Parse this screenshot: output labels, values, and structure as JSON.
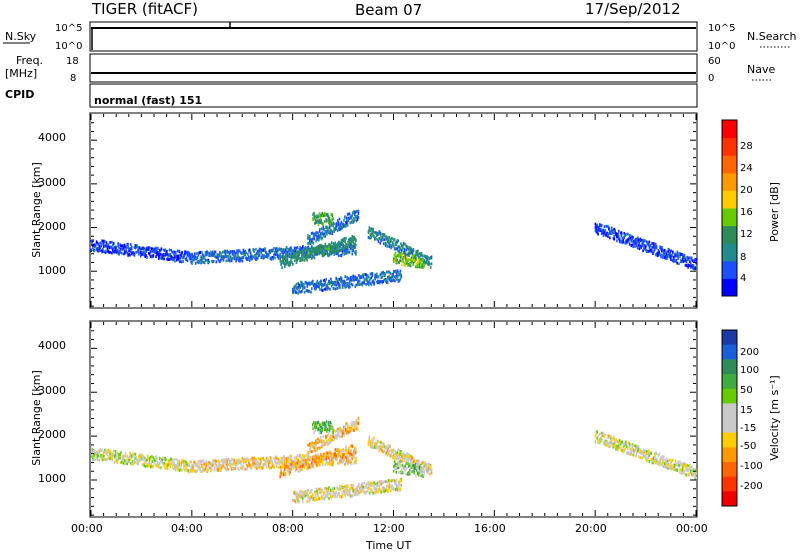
{
  "header": {
    "title": "TIGER (fitACF)",
    "beam": "Beam 07",
    "date": "17/Sep/2012"
  },
  "nsky_panel": {
    "left_label": "N.Sky",
    "right_label": "N.Search",
    "left_ticks": [
      "10^5",
      "10^0"
    ],
    "right_ticks": [
      "10^5",
      "10^0"
    ]
  },
  "freq_panel": {
    "left_label": "Freq.",
    "left_unit": "[MHz]",
    "right_label": "Nave",
    "left_ticks": [
      "18",
      "8"
    ],
    "right_ticks": [
      "60",
      "0"
    ]
  },
  "cpid_panel": {
    "label": "CPID",
    "value": "normal (fast) 151"
  },
  "power_panel": {
    "ylabel": "Slant Range [km]",
    "yticks": [
      "1000",
      "2000",
      "3000",
      "4000"
    ],
    "colorbar_label": "Power [dB]",
    "colorbar_ticks": [
      "4",
      "8",
      "12",
      "16",
      "20",
      "24",
      "28"
    ],
    "colors": [
      "#0000ff",
      "#1a50ff",
      "#228b8b",
      "#2e8b57",
      "#66cc00",
      "#ffcc00",
      "#ff9900",
      "#ff6600",
      "#ff3300",
      "#ff0000"
    ]
  },
  "velocity_panel": {
    "ylabel": "Slant Range [km]",
    "yticks": [
      "1000",
      "2000",
      "3000",
      "4000"
    ],
    "colorbar_label": "Velocity [m s⁻¹]",
    "colorbar_ticks": [
      "200",
      "100",
      "50",
      "15",
      "-15",
      "-50",
      "-100",
      "-200"
    ],
    "colors": [
      "#1a3aa8",
      "#1a5fd8",
      "#2e8b57",
      "#3faa3f",
      "#66cc00",
      "#c8c8c8",
      "#c8c8c8",
      "#ffcc00",
      "#ff9900",
      "#ff6600",
      "#ff3300",
      "#ee0000"
    ]
  },
  "xaxis": {
    "label": "Time UT",
    "ticks": [
      "00:00",
      "04:00",
      "08:00",
      "12:00",
      "16:00",
      "20:00",
      "00:00"
    ]
  },
  "chart_data": [
    {
      "type": "heatmap",
      "title": "Power",
      "xlabel": "Time UT",
      "ylabel": "Slant Range [km]",
      "xlim": [
        0,
        24
      ],
      "ylim": [
        180,
        4600
      ],
      "colorbar": {
        "label": "Power [dB]",
        "range": [
          0,
          32
        ],
        "ticks": [
          4,
          8,
          12,
          16,
          20,
          24,
          28
        ]
      },
      "bands": [
        {
          "t_start": 0.0,
          "t_end": 4.0,
          "range_start_km": 1600,
          "range_end_km": 1300,
          "power_db": 4
        },
        {
          "t_start": 4.0,
          "t_end": 10.5,
          "range_start_km": 1300,
          "range_end_km": 1500,
          "power_db": 6
        },
        {
          "t_start": 7.5,
          "t_end": 10.5,
          "range_start_km": 1200,
          "range_end_km": 1700,
          "power_db": 10
        },
        {
          "t_start": 8.6,
          "t_end": 10.6,
          "range_start_km": 1700,
          "range_end_km": 2300,
          "power_db": 6
        },
        {
          "t_start": 8.8,
          "t_end": 9.6,
          "range_start_km": 2200,
          "range_end_km": 2200,
          "power_db": 12
        },
        {
          "t_start": 11.0,
          "t_end": 13.5,
          "range_start_km": 1900,
          "range_end_km": 1200,
          "power_db": 8
        },
        {
          "t_start": 12.0,
          "t_end": 13.2,
          "range_start_km": 1300,
          "range_end_km": 1200,
          "power_db": 14
        },
        {
          "t_start": 8.0,
          "t_end": 12.3,
          "range_start_km": 600,
          "range_end_km": 900,
          "power_db": 6
        },
        {
          "t_start": 20.0,
          "t_end": 24.0,
          "range_start_km": 2000,
          "range_end_km": 1150,
          "power_db": 4
        }
      ]
    },
    {
      "type": "heatmap",
      "title": "Velocity",
      "xlabel": "Time UT",
      "ylabel": "Slant Range [km]",
      "xlim": [
        0,
        24
      ],
      "ylim": [
        180,
        4600
      ],
      "colorbar": {
        "label": "Velocity [m s⁻¹]",
        "range": [
          -250,
          250
        ],
        "ticks": [
          200,
          100,
          50,
          15,
          -15,
          -50,
          -100,
          -200
        ]
      },
      "bands": [
        {
          "t_start": 0.0,
          "t_end": 4.0,
          "range_start_km": 1600,
          "range_end_km": 1300,
          "velocity": 0
        },
        {
          "t_start": 4.0,
          "t_end": 10.5,
          "range_start_km": 1300,
          "range_end_km": 1500,
          "velocity": -40
        },
        {
          "t_start": 7.5,
          "t_end": 10.5,
          "range_start_km": 1200,
          "range_end_km": 1700,
          "velocity": -80
        },
        {
          "t_start": 8.6,
          "t_end": 10.6,
          "range_start_km": 1700,
          "range_end_km": 2300,
          "velocity": -60
        },
        {
          "t_start": 8.8,
          "t_end": 9.6,
          "range_start_km": 2200,
          "range_end_km": 2200,
          "velocity": 80
        },
        {
          "t_start": 11.0,
          "t_end": 13.5,
          "range_start_km": 1900,
          "range_end_km": 1200,
          "velocity": -30
        },
        {
          "t_start": 12.0,
          "t_end": 13.2,
          "range_start_km": 1300,
          "range_end_km": 1200,
          "velocity": 60
        },
        {
          "t_start": 8.0,
          "t_end": 12.3,
          "range_start_km": 600,
          "range_end_km": 900,
          "velocity": -20
        },
        {
          "t_start": 20.0,
          "t_end": 24.0,
          "range_start_km": 2000,
          "range_end_km": 1150,
          "velocity": -10
        }
      ]
    }
  ]
}
